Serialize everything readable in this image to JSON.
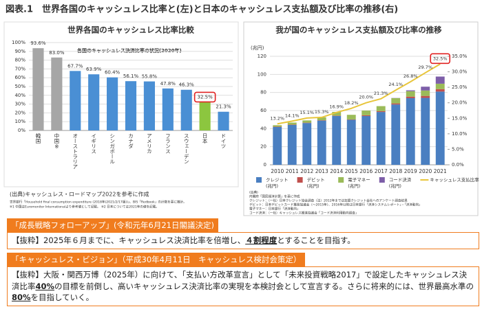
{
  "header": {
    "title": "図表.1　世界各国のキャッシュレス比率と(左)と日本のキャッシュレス支払額及び比率の推移(右)"
  },
  "chart_data": [
    {
      "type": "bar",
      "title": "世界各国のキャッシュレス比率比較",
      "subtitle": "各国のキャッシュレス決済比率の状況(2020年)",
      "categories": [
        "韓国",
        "中国※",
        "オーストラリア",
        "イギリス",
        "シンガポール",
        "カナダ",
        "アメリカ",
        "フランス",
        "スウェーデン",
        "日本",
        "ドイツ"
      ],
      "values": [
        93.6,
        83.0,
        67.7,
        63.9,
        60.4,
        56.1,
        55.8,
        47.8,
        46.3,
        32.5,
        21.3
      ],
      "value_labels": [
        "93.6%",
        "83.0%",
        "67.7%",
        "63.9%",
        "60.4%",
        "56.1%",
        "55.8%",
        "47.8%",
        "46.3%",
        "32.5%",
        "21.3%"
      ],
      "colors": [
        "#a6a6a6",
        "#a6a6a6",
        "#4a8fd4",
        "#4a8fd4",
        "#4a8fd4",
        "#4a8fd4",
        "#4a8fd4",
        "#4a8fd4",
        "#4a8fd4",
        "#8cc63f",
        "#4a8fd4"
      ],
      "highlight": 9,
      "ylim": [
        0,
        100
      ],
      "yticks": [
        {
          "value": 0,
          "label": "0%"
        },
        {
          "value": 10,
          "label": "10%"
        },
        {
          "value": 20,
          "label": "20%"
        },
        {
          "value": 30,
          "label": "30%"
        },
        {
          "value": 40,
          "label": "40%"
        },
        {
          "value": 50,
          "label": "50%"
        },
        {
          "value": 60,
          "label": "60%"
        },
        {
          "value": 70,
          "label": "70%"
        },
        {
          "value": 80,
          "label": "80%"
        },
        {
          "value": 90,
          "label": "90%"
        },
        {
          "value": 100,
          "label": "100%"
        }
      ],
      "grid": true,
      "source": "(出典)キャッシュレス・ロードマップ2022を参考に作成",
      "notes": [
        "世界銀行「Household final consumption expenditure (2018年(2021/2/17版))」、BIS「Redbook」の計数を基に推計。",
        "※1 中国はEuromonitor Internationalより参考値として記載。 ※2 日本については2021年の値を記載。"
      ]
    },
    {
      "type": "bar",
      "stacked": true,
      "title": "我が国のキャッシュレス支払額及び比率の推移",
      "y_label": "(兆円)",
      "categories": [
        "2010",
        "2011",
        "2012",
        "2013",
        "2014",
        "2015",
        "2016",
        "2017",
        "2018",
        "2019",
        "2020",
        "2021"
      ],
      "series": [
        {
          "name": "クレジット",
          "color": "#4a7fc1",
          "values": [
            41.8,
            44.1,
            46.2,
            48.9,
            54.0,
            49.8,
            53.9,
            58.4,
            66.7,
            73.7,
            74.0,
            81.0
          ]
        },
        {
          "name": "デビット",
          "color": "#c0504d",
          "values": [
            0.4,
            0.4,
            0.4,
            0.4,
            0.4,
            0.4,
            0.9,
            1.0,
            1.2,
            1.7,
            2.2,
            2.7
          ]
        },
        {
          "name": "電子マネー",
          "color": "#9bbb59",
          "values": [
            1.6,
            2.2,
            2.5,
            3.3,
            4.1,
            5.1,
            5.2,
            5.5,
            5.8,
            6.0,
            6.0,
            6.0
          ]
        },
        {
          "name": "コード決済",
          "color": "#7d5ea8",
          "values": [
            null,
            null,
            null,
            null,
            null,
            null,
            null,
            null,
            0.2,
            1.0,
            4.2,
            7.9
          ]
        },
        {
          "name": "キャッシュレス支払比率",
          "color": "#e8c53a",
          "type": "line",
          "axis": "y2",
          "values": [
            13.2,
            14.1,
            15.1,
            15.3,
            16.9,
            18.2,
            20.0,
            21.3,
            24.1,
            26.8,
            29.7,
            32.5
          ],
          "value_labels": [
            "13.2%",
            "14.1%",
            "15.1%",
            "15.3%",
            "16.9%",
            "18.2%",
            "20.0%",
            "21.3%",
            "24.1%",
            "26.8%",
            "29.7%",
            "32.5%"
          ]
        }
      ],
      "highlight": 11,
      "ylim": [
        0,
        120
      ],
      "yticks": [
        0,
        20,
        40,
        60,
        80,
        100,
        120
      ],
      "y2lim": [
        0,
        35
      ],
      "y2ticks": [
        {
          "value": 0,
          "label": "0.0%"
        },
        {
          "value": 5,
          "label": "5.0%"
        },
        {
          "value": 10,
          "label": "10.0%"
        },
        {
          "value": 15,
          "label": "15.0%"
        },
        {
          "value": 20,
          "label": "20.0%"
        },
        {
          "value": 25,
          "label": "25.0%"
        },
        {
          "value": 30,
          "label": "30.0%"
        },
        {
          "value": 35,
          "label": "35.0%"
        }
      ],
      "grid": true,
      "legend": "bottom",
      "legend_unit": "(兆円)",
      "notes": [
        "(出典)",
        "内閣府「国民経済計算」を基に作成",
        "クレジット：（一社）日本クレジット協会調査（注）2012年までは加盟クレジット会社へのアンケート調査結果",
        "デビット：日本デビットカード推進協議会（〜2015年）、2016年以降は日本銀行「決済システムレポート」・「決済動向」",
        "電子マネー：日本銀行「決済動向」",
        "コード決済：（一社）キャッシュレス推進協議会「コード決済利用動向調査」"
      ]
    }
  ],
  "boxes": [
    {
      "heading": "「成長戦略フォローアップ」(令和元年6月21日閣議決定)",
      "body": [
        "【抜粋】2025年６月までに、キャッシュレス決済比率を倍増し、",
        "４割程度",
        "とすることを目指す。"
      ]
    },
    {
      "heading": "「キャッシュレス・ビジョン」（平成30年4月11日　キャッシュレス検討会策定）",
      "body": [
        "【抜粋】大阪・関西万博（2025年）に向けて、「支払い方改革宣言」として「未来投資戦略2017」で設定したキャッシュレス決済比率",
        "40%",
        "の目標を前倒し、高いキャッシュレス決済比率の実現を本検討会として宣言する。さらに将来的には、世界最高水準の",
        "80%",
        "を目指していく。"
      ]
    }
  ]
}
